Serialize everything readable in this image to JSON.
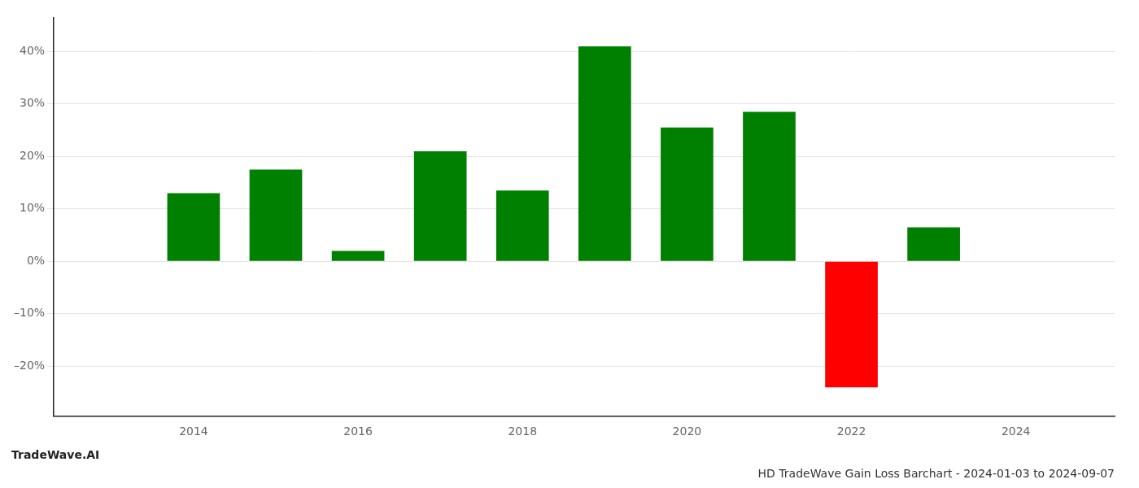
{
  "chart_data": {
    "type": "bar",
    "title": "HD TradeWave Gain Loss Barchart - 2024-01-03 to 2024-09-07",
    "annotations": [
      "TradeWave.AI"
    ],
    "x": [
      2014,
      2015,
      2016,
      2017,
      2018,
      2019,
      2020,
      2021,
      2022,
      2023
    ],
    "values": [
      0.13,
      0.175,
      0.02,
      0.21,
      0.135,
      0.41,
      0.255,
      0.285,
      -0.24,
      0.065
    ],
    "colors": [
      "#008000",
      "#008000",
      "#008000",
      "#008000",
      "#008000",
      "#008000",
      "#008000",
      "#008000",
      "#ff0000",
      "#008000"
    ],
    "xlim": [
      2012.3,
      2025.2
    ],
    "xticks": [
      2014,
      2016,
      2018,
      2020,
      2022,
      2024
    ],
    "ylim": [
      -0.295,
      0.465
    ],
    "yticks": [
      {
        "value": -0.2,
        "label": "–20%"
      },
      {
        "value": -0.1,
        "label": "–10%"
      },
      {
        "value": 0,
        "label": "0%"
      },
      {
        "value": 0.1,
        "label": "10%"
      },
      {
        "value": 0.2,
        "label": "20%"
      },
      {
        "value": 0.3,
        "label": "30%"
      },
      {
        "value": 0.4,
        "label": "40%"
      }
    ],
    "grid": true
  }
}
